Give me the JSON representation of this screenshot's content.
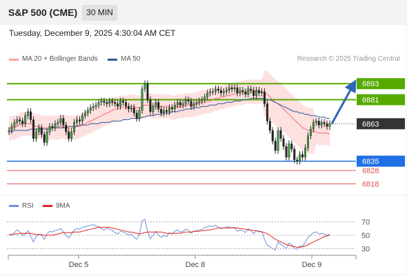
{
  "header": {
    "symbol": "S&P 500 (CME)",
    "timeframe": "30 MIN",
    "timestamp": "Tuesday, December 9, 2025 4:30:04 AM CET",
    "credit": "Research © 2025 Trading Central"
  },
  "legend": {
    "ma20_label": "MA 20 + Bollinger Bands",
    "ma50_label": "MA 50",
    "rsi_label": "RSI",
    "ma9_label": "9MA"
  },
  "colors": {
    "ma20": "#f26d6d",
    "ma50": "#2f5597",
    "band": "#fde0e0",
    "resistance": "#55aa00",
    "support": "#1f6fe5",
    "support_red": "#e05050",
    "rsi": "#6d8fd8",
    "arrow": "#2f64b6"
  },
  "chart_data": [
    {
      "type": "candlestick",
      "x_axis": {
        "ticks": [
          "Dec 5",
          "Dec 8",
          "Dec 9"
        ]
      },
      "y_range": [
        6810,
        6905
      ],
      "levels": [
        {
          "value": 6893,
          "label": "6893",
          "kind": "resistance"
        },
        {
          "value": 6881,
          "label": "6881",
          "kind": "resistance"
        },
        {
          "value": 6863,
          "label": "6863",
          "kind": "current"
        },
        {
          "value": 6835,
          "label": "6835",
          "kind": "support"
        },
        {
          "value": 6828,
          "label": "6828",
          "kind": "support_minor"
        },
        {
          "value": 6818,
          "label": "6818",
          "kind": "support_minor"
        }
      ],
      "candles_close": [
        6858,
        6861,
        6864,
        6866,
        6865,
        6863,
        6869,
        6872,
        6866,
        6852,
        6857,
        6860,
        6855,
        6849,
        6857,
        6861,
        6860,
        6863,
        6864,
        6867,
        6862,
        6857,
        6852,
        6857,
        6864,
        6866,
        6865,
        6869,
        6871,
        6873,
        6875,
        6876,
        6877,
        6879,
        6880,
        6879,
        6878,
        6880,
        6879,
        6878,
        6876,
        6880,
        6879,
        6876,
        6874,
        6875,
        6871,
        6867,
        6873,
        6889,
        6893,
        6881,
        6872,
        6876,
        6879,
        6874,
        6871,
        6873,
        6872,
        6875,
        6874,
        6877,
        6879,
        6877,
        6878,
        6881,
        6880,
        6876,
        6878,
        6879,
        6880,
        6881,
        6883,
        6886,
        6887,
        6887,
        6889,
        6888,
        6886,
        6887,
        6888,
        6890,
        6889,
        6890,
        6886,
        6888,
        6887,
        6885,
        6889,
        6888,
        6884,
        6888,
        6886,
        6887,
        6878,
        6865,
        6858,
        6850,
        6843,
        6858,
        6852,
        6846,
        6838,
        6848,
        6844,
        6836,
        6835,
        6840,
        6838,
        6845,
        6854,
        6859,
        6864,
        6865,
        6862,
        6864,
        6863,
        6861,
        6863
      ],
      "ma20": [
        6859,
        6860,
        6860,
        6861,
        6862,
        6863,
        6863,
        6863,
        6863,
        6862,
        6861,
        6861,
        6860,
        6860,
        6860,
        6860,
        6860,
        6860,
        6860,
        6861,
        6861,
        6860,
        6860,
        6860,
        6860,
        6861,
        6861,
        6862,
        6863,
        6864,
        6865,
        6866,
        6867,
        6868,
        6869,
        6870,
        6871,
        6872,
        6873,
        6874,
        6874,
        6875,
        6875,
        6875,
        6876,
        6876,
        6876,
        6875,
        6875,
        6876,
        6877,
        6877,
        6877,
        6876,
        6876,
        6876,
        6876,
        6876,
        6876,
        6876,
        6875,
        6875,
        6876,
        6876,
        6876,
        6877,
        6877,
        6877,
        6877,
        6878,
        6878,
        6879,
        6879,
        6880,
        6880,
        6881,
        6882,
        6882,
        6883,
        6883,
        6884,
        6884,
        6885,
        6885,
        6886,
        6886,
        6886,
        6887,
        6887,
        6887,
        6887,
        6887,
        6887,
        6887,
        6886,
        6885,
        6883,
        6881,
        6879,
        6878,
        6876,
        6874,
        6872,
        6870,
        6868,
        6866,
        6864,
        6862,
        6860,
        6859,
        6858,
        6858,
        6857,
        6857,
        6856,
        6856,
        6856,
        6856,
        6855
      ],
      "ma50": [
        6857,
        6857,
        6858,
        6858,
        6858,
        6858,
        6858,
        6858,
        6859,
        6859,
        6859,
        6859,
        6859,
        6859,
        6859,
        6859,
        6860,
        6860,
        6860,
        6860,
        6860,
        6860,
        6861,
        6861,
        6861,
        6861,
        6862,
        6862,
        6862,
        6862,
        6863,
        6863,
        6863,
        6863,
        6864,
        6864,
        6864,
        6864,
        6865,
        6865,
        6865,
        6865,
        6866,
        6866,
        6866,
        6867,
        6867,
        6867,
        6867,
        6868,
        6868,
        6869,
        6869,
        6869,
        6870,
        6870,
        6870,
        6871,
        6871,
        6871,
        6872,
        6872,
        6872,
        6873,
        6873,
        6874,
        6874,
        6874,
        6875,
        6875,
        6875,
        6876,
        6876,
        6876,
        6877,
        6877,
        6877,
        6878,
        6878,
        6878,
        6879,
        6879,
        6879,
        6880,
        6880,
        6880,
        6881,
        6881,
        6881,
        6882,
        6882,
        6882,
        6882,
        6882,
        6882,
        6881,
        6881,
        6880,
        6879,
        6878,
        6877,
        6876,
        6875,
        6874,
        6873,
        6872,
        6872,
        6871,
        6871,
        6870,
        6870,
        6869,
        6869,
        6869,
        6868,
        6868,
        6868,
        6867,
        6867
      ]
    },
    {
      "type": "line",
      "title": "RSI",
      "y_ticks": [
        70,
        50,
        30
      ],
      "y_range": [
        20,
        80
      ],
      "series": [
        {
          "name": "RSI",
          "values": [
            52,
            50,
            54,
            58,
            55,
            50,
            52,
            57,
            49,
            40,
            48,
            52,
            50,
            44,
            52,
            56,
            55,
            57,
            58,
            60,
            55,
            50,
            46,
            52,
            58,
            60,
            59,
            62,
            63,
            64,
            65,
            66,
            64,
            63,
            60,
            58,
            61,
            59,
            57,
            54,
            52,
            56,
            55,
            53,
            50,
            52,
            47,
            44,
            52,
            72,
            74,
            56,
            45,
            50,
            56,
            50,
            47,
            50,
            48,
            54,
            52,
            56,
            58,
            55,
            56,
            59,
            58,
            53,
            56,
            57,
            58,
            59,
            61,
            63,
            64,
            63,
            65,
            62,
            60,
            61,
            62,
            63,
            61,
            62,
            56,
            58,
            57,
            54,
            60,
            57,
            52,
            57,
            55,
            56,
            44,
            35,
            33,
            30,
            28,
            40,
            36,
            34,
            30,
            38,
            36,
            30,
            29,
            34,
            33,
            40,
            47,
            50,
            54,
            55,
            52,
            53,
            52,
            50,
            52
          ]
        },
        {
          "name": "9MA",
          "values": [
            51,
            51,
            52,
            52,
            53,
            53,
            53,
            53,
            53,
            52,
            51,
            51,
            51,
            50,
            50,
            50,
            50,
            51,
            52,
            53,
            54,
            54,
            54,
            54,
            55,
            55,
            55,
            56,
            57,
            58,
            59,
            60,
            61,
            62,
            62,
            62,
            62,
            62,
            61,
            60,
            59,
            58,
            57,
            56,
            55,
            55,
            54,
            53,
            52,
            53,
            54,
            55,
            55,
            55,
            55,
            55,
            55,
            54,
            53,
            53,
            53,
            53,
            53,
            53,
            54,
            55,
            55,
            55,
            56,
            56,
            56,
            57,
            57,
            58,
            58,
            59,
            60,
            61,
            61,
            61,
            61,
            61,
            61,
            61,
            61,
            60,
            60,
            59,
            58,
            58,
            57,
            57,
            56,
            55,
            54,
            52,
            50,
            47,
            44,
            42,
            40,
            38,
            36,
            35,
            34,
            33,
            32,
            32,
            33,
            34,
            36,
            38,
            40,
            42,
            44,
            46,
            48,
            49,
            50
          ]
        }
      ]
    }
  ]
}
